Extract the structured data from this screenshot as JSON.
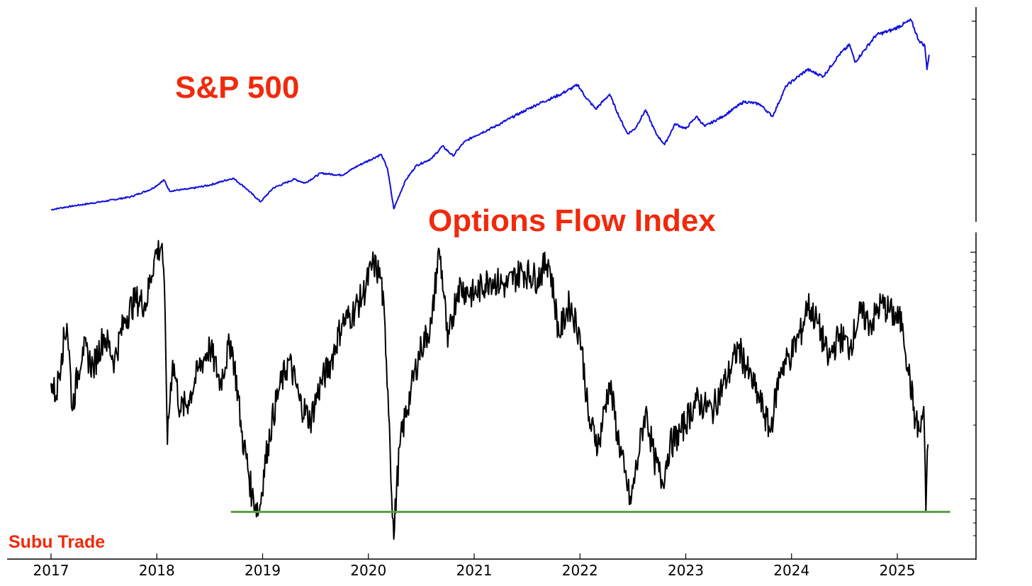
{
  "chart_data": [
    {
      "type": "line",
      "title": "S&P 500",
      "xlabel": "",
      "ylabel": "",
      "x_ticks": [
        "2017",
        "2018",
        "2019",
        "2020",
        "2021",
        "2022",
        "2023",
        "2024",
        "2025"
      ],
      "y_ticks_labeled": false,
      "series": [
        {
          "color": "#1010dd",
          "points": [
            [
              2017.0,
              2260
            ],
            [
              2017.1,
              2300
            ],
            [
              2017.25,
              2350
            ],
            [
              2017.5,
              2430
            ],
            [
              2017.75,
              2520
            ],
            [
              2017.95,
              2680
            ],
            [
              2018.07,
              2860
            ],
            [
              2018.12,
              2640
            ],
            [
              2018.3,
              2680
            ],
            [
              2018.5,
              2760
            ],
            [
              2018.72,
              2900
            ],
            [
              2018.83,
              2720
            ],
            [
              2018.98,
              2420
            ],
            [
              2019.1,
              2700
            ],
            [
              2019.3,
              2880
            ],
            [
              2019.4,
              2800
            ],
            [
              2019.55,
              3000
            ],
            [
              2019.75,
              2960
            ],
            [
              2019.9,
              3150
            ],
            [
              2020.12,
              3380
            ],
            [
              2020.18,
              3100
            ],
            [
              2020.24,
              2280
            ],
            [
              2020.35,
              2850
            ],
            [
              2020.45,
              3150
            ],
            [
              2020.6,
              3300
            ],
            [
              2020.7,
              3550
            ],
            [
              2020.8,
              3350
            ],
            [
              2020.9,
              3620
            ],
            [
              2021.0,
              3750
            ],
            [
              2021.2,
              3950
            ],
            [
              2021.4,
              4180
            ],
            [
              2021.6,
              4400
            ],
            [
              2021.8,
              4580
            ],
            [
              2021.98,
              4790
            ],
            [
              2022.05,
              4550
            ],
            [
              2022.15,
              4300
            ],
            [
              2022.28,
              4600
            ],
            [
              2022.38,
              4100
            ],
            [
              2022.45,
              3800
            ],
            [
              2022.52,
              3900
            ],
            [
              2022.62,
              4280
            ],
            [
              2022.72,
              3800
            ],
            [
              2022.8,
              3580
            ],
            [
              2022.9,
              4000
            ],
            [
              2023.0,
              3900
            ],
            [
              2023.1,
              4150
            ],
            [
              2023.18,
              3950
            ],
            [
              2023.35,
              4150
            ],
            [
              2023.55,
              4450
            ],
            [
              2023.7,
              4400
            ],
            [
              2023.82,
              4150
            ],
            [
              2023.95,
              4770
            ],
            [
              2024.15,
              5100
            ],
            [
              2024.3,
              4960
            ],
            [
              2024.45,
              5400
            ],
            [
              2024.55,
              5600
            ],
            [
              2024.6,
              5250
            ],
            [
              2024.8,
              5800
            ],
            [
              2024.95,
              5900
            ],
            [
              2025.13,
              6100
            ],
            [
              2025.2,
              5700
            ],
            [
              2025.26,
              5580
            ],
            [
              2025.28,
              5100
            ],
            [
              2025.3,
              5400
            ]
          ]
        }
      ]
    },
    {
      "type": "line",
      "title": "Options Flow Index",
      "xlabel": "",
      "ylabel": "",
      "x_ticks": [
        "2017",
        "2018",
        "2019",
        "2020",
        "2021",
        "2022",
        "2023",
        "2024",
        "2025"
      ],
      "y_ticks_labeled": false,
      "y_scale": "log",
      "series": [
        {
          "color": "#000000",
          "points": [
            [
              2017.0,
              0.85
            ],
            [
              2017.05,
              0.78
            ],
            [
              2017.1,
              1.05
            ],
            [
              2017.15,
              1.3
            ],
            [
              2017.2,
              0.7
            ],
            [
              2017.3,
              1.1
            ],
            [
              2017.4,
              0.95
            ],
            [
              2017.5,
              1.2
            ],
            [
              2017.6,
              1.0
            ],
            [
              2017.7,
              1.35
            ],
            [
              2017.8,
              1.55
            ],
            [
              2017.9,
              1.5
            ],
            [
              2017.98,
              2.1
            ],
            [
              2018.05,
              2.3
            ],
            [
              2018.1,
              0.55
            ],
            [
              2018.15,
              1.0
            ],
            [
              2018.22,
              0.7
            ],
            [
              2018.3,
              0.75
            ],
            [
              2018.4,
              0.95
            ],
            [
              2018.5,
              1.1
            ],
            [
              2018.6,
              0.85
            ],
            [
              2018.7,
              1.15
            ],
            [
              2018.8,
              0.6
            ],
            [
              2018.9,
              0.38
            ],
            [
              2018.97,
              0.34
            ],
            [
              2019.05,
              0.55
            ],
            [
              2019.15,
              0.8
            ],
            [
              2019.25,
              1.0
            ],
            [
              2019.35,
              0.75
            ],
            [
              2019.45,
              0.65
            ],
            [
              2019.55,
              0.85
            ],
            [
              2019.65,
              1.0
            ],
            [
              2019.75,
              1.3
            ],
            [
              2019.85,
              1.4
            ],
            [
              2019.95,
              1.6
            ],
            [
              2020.05,
              2.0
            ],
            [
              2020.12,
              1.8
            ],
            [
              2020.17,
              1.0
            ],
            [
              2020.22,
              0.38
            ],
            [
              2020.24,
              0.28
            ],
            [
              2020.3,
              0.55
            ],
            [
              2020.4,
              0.8
            ],
            [
              2020.5,
              1.1
            ],
            [
              2020.6,
              1.3
            ],
            [
              2020.67,
              2.2
            ],
            [
              2020.75,
              1.1
            ],
            [
              2020.85,
              1.7
            ],
            [
              2021.0,
              1.6
            ],
            [
              2021.15,
              1.8
            ],
            [
              2021.3,
              1.7
            ],
            [
              2021.45,
              1.9
            ],
            [
              2021.6,
              1.8
            ],
            [
              2021.7,
              2.05
            ],
            [
              2021.8,
              1.2
            ],
            [
              2021.9,
              1.5
            ],
            [
              2022.0,
              1.2
            ],
            [
              2022.08,
              0.65
            ],
            [
              2022.18,
              0.55
            ],
            [
              2022.28,
              0.85
            ],
            [
              2022.35,
              0.6
            ],
            [
              2022.42,
              0.45
            ],
            [
              2022.48,
              0.36
            ],
            [
              2022.55,
              0.5
            ],
            [
              2022.62,
              0.7
            ],
            [
              2022.7,
              0.5
            ],
            [
              2022.78,
              0.42
            ],
            [
              2022.85,
              0.55
            ],
            [
              2022.95,
              0.6
            ],
            [
              2023.1,
              0.75
            ],
            [
              2023.25,
              0.7
            ],
            [
              2023.4,
              0.9
            ],
            [
              2023.5,
              1.1
            ],
            [
              2023.6,
              0.9
            ],
            [
              2023.7,
              0.75
            ],
            [
              2023.8,
              0.6
            ],
            [
              2023.9,
              0.95
            ],
            [
              2024.0,
              1.05
            ],
            [
              2024.1,
              1.25
            ],
            [
              2024.15,
              1.5
            ],
            [
              2024.25,
              1.3
            ],
            [
              2024.35,
              1.0
            ],
            [
              2024.45,
              1.2
            ],
            [
              2024.55,
              1.1
            ],
            [
              2024.65,
              1.4
            ],
            [
              2024.75,
              1.3
            ],
            [
              2024.85,
              1.5
            ],
            [
              2024.95,
              1.4
            ],
            [
              2025.05,
              1.3
            ],
            [
              2025.1,
              0.95
            ],
            [
              2025.17,
              0.65
            ],
            [
              2025.22,
              0.6
            ],
            [
              2025.25,
              0.72
            ],
            [
              2025.27,
              0.34
            ],
            [
              2025.29,
              0.55
            ]
          ]
        },
        {
          "color": "#58a03c",
          "type": "hline",
          "points": [
            [
              2018.7,
              0.34
            ],
            [
              2025.5,
              0.34
            ]
          ]
        }
      ]
    }
  ],
  "watermark": "Subu Trade"
}
